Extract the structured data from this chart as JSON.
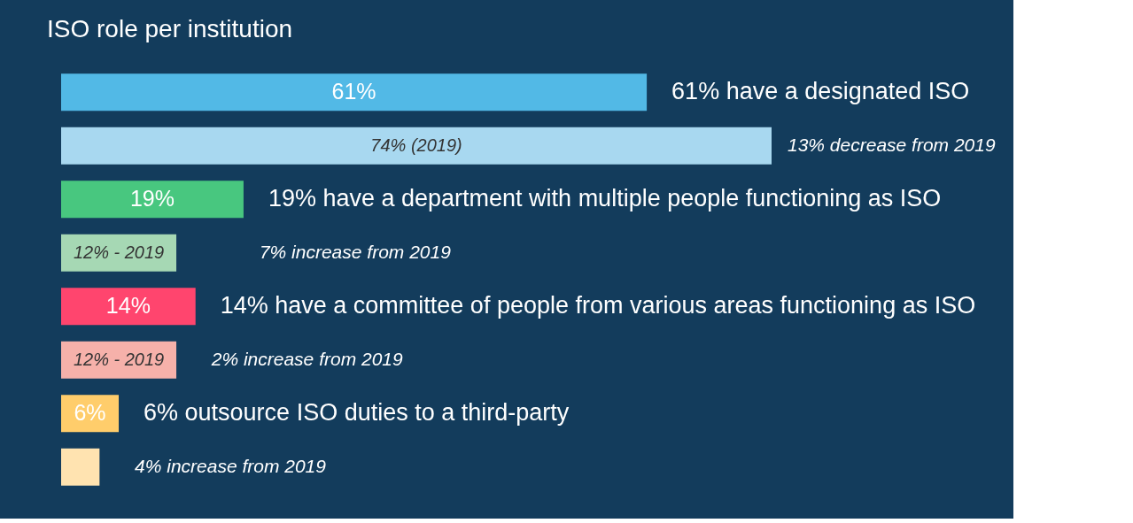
{
  "chart_data": {
    "type": "bar",
    "orientation": "horizontal",
    "title": "ISO role per institution",
    "categories": [
      null,
      null,
      null,
      null,
      null,
      null,
      null,
      null
    ],
    "values": [
      61,
      74,
      19,
      12,
      14,
      12,
      6,
      4
    ],
    "colors": [
      "#52b9e6",
      "#a8d8f0",
      "#48c77f",
      "#a6d8b4",
      "#ff456e",
      "#f6b1aa",
      "#ffcd6b",
      "#ffe3b0"
    ],
    "value_labels": [
      "61%",
      "74% (2019)",
      "19%",
      "12% - 2019",
      "14%",
      "12% - 2019",
      "6%",
      null
    ],
    "annotations": [
      "61% have a designated ISO",
      "13% decrease from 2019",
      "19% have a department with multiple people functioning as ISO",
      "7% increase from 2019",
      "14% have a committee of people from various areas functioning as ISO",
      "2% increase from 2019",
      "6% outsource ISO duties to a third-party",
      "4% increase from 2019"
    ]
  }
}
